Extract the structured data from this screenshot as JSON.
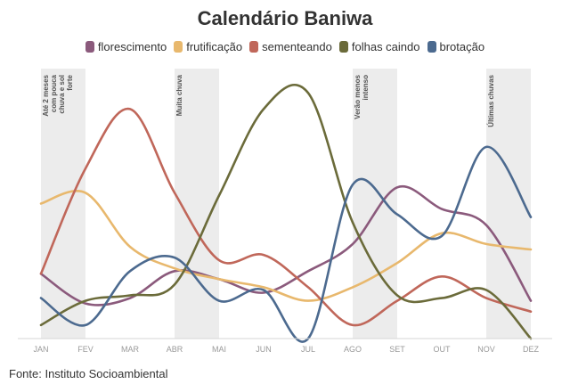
{
  "chart_data": {
    "type": "line",
    "title": "Calendário Baniwa",
    "categories": [
      "JAN",
      "FEV",
      "MAR",
      "ABR",
      "MAI",
      "JUN",
      "JUL",
      "AGO",
      "SET",
      "OUT",
      "NOV",
      "DEZ"
    ],
    "ylim": [
      0,
      100
    ],
    "xlabel": "",
    "ylabel": "",
    "legend_position": "top-center",
    "series": [
      {
        "name": "florescimento",
        "color": "#8b5a7c",
        "values": [
          24,
          13,
          15,
          25,
          22,
          17,
          25,
          35,
          56,
          48,
          42,
          14
        ]
      },
      {
        "name": "frutificação",
        "color": "#e8b86d",
        "values": [
          50,
          54,
          34,
          26,
          22,
          19,
          14,
          19,
          28,
          39,
          35,
          33
        ]
      },
      {
        "name": "sementeando",
        "color": "#c0675a",
        "values": [
          24,
          63,
          85,
          54,
          29,
          31,
          19,
          5,
          14,
          23,
          15,
          10
        ]
      },
      {
        "name": "folhas caindo",
        "color": "#6b6b3a",
        "values": [
          5,
          14,
          16,
          20,
          53,
          85,
          91,
          43,
          16,
          15,
          18,
          0
        ]
      },
      {
        "name": "brotação",
        "color": "#4c6a8f",
        "values": [
          15,
          5,
          25,
          30,
          14,
          18,
          0,
          57,
          46,
          38,
          71,
          45
        ]
      }
    ],
    "annotations": [
      {
        "between": [
          "JAN",
          "FEV"
        ],
        "text": "Até 2 meses com pouca chuva e sol forte"
      },
      {
        "between": [
          "ABR",
          "MAI"
        ],
        "text": "Muita chuva"
      },
      {
        "between": [
          "AGO",
          "SET"
        ],
        "text": "Verão menos intenso"
      },
      {
        "between": [
          "NOV",
          "DEZ"
        ],
        "text": "Últimas chuvas"
      }
    ],
    "grid": false
  },
  "source": "Fonte: Instituto Socioambiental"
}
